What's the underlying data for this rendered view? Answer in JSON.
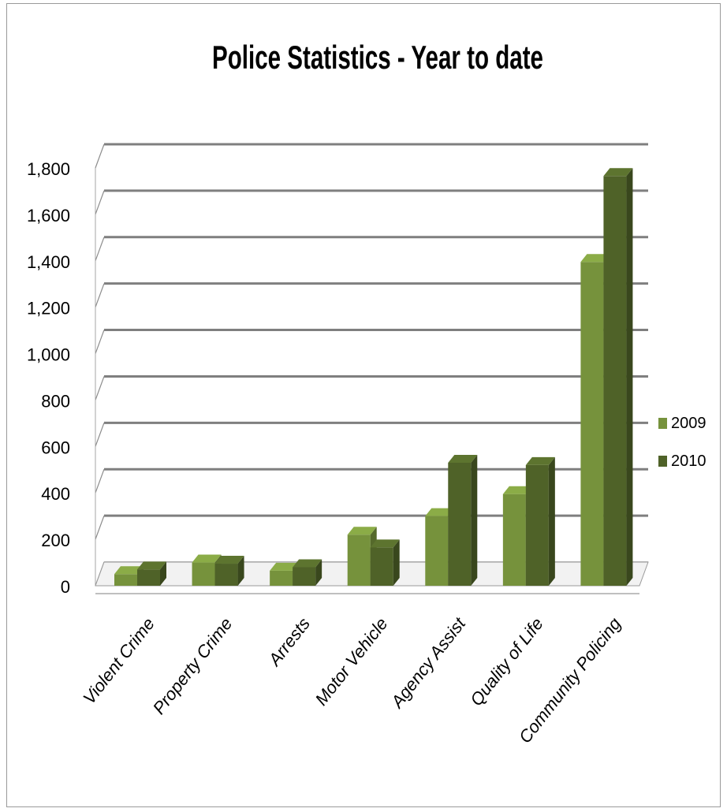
{
  "chart_data": {
    "type": "bar",
    "title": "Police Statistics - Year to date",
    "xlabel": "",
    "ylabel": "",
    "ylim": [
      0,
      1800
    ],
    "y_ticks": [
      "0",
      "200",
      "400",
      "600",
      "800",
      "1,000",
      "1,200",
      "1,400",
      "1,600",
      "1,800"
    ],
    "categories": [
      "Violent Crime",
      "Property Crime",
      "Arrests",
      "Motor Vehicle",
      "Agency Assist",
      "Quality of Life",
      "Community Policing"
    ],
    "series": [
      {
        "name": "2009",
        "color": "#76923c",
        "values": [
          50,
          100,
          65,
          220,
          300,
          395,
          1395
        ]
      },
      {
        "name": "2010",
        "color": "#4f6228",
        "values": [
          70,
          95,
          80,
          165,
          530,
          520,
          1765
        ]
      }
    ],
    "grid": true,
    "legend_position": "right",
    "style_3d": true
  }
}
